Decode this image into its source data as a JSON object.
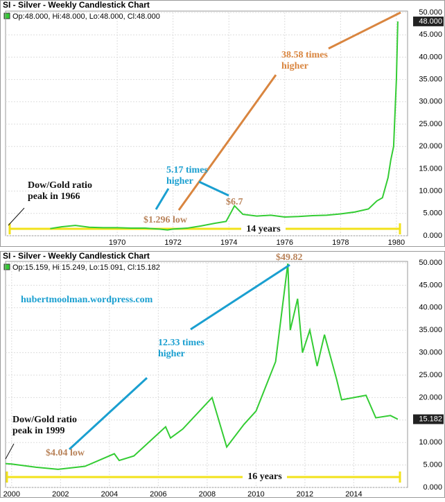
{
  "chart_data": [
    {
      "type": "line",
      "title": "SI - Silver - Weekly Candlestick Chart",
      "ohlc_label": "Op:48.000, Hi:48.000, Lo:48.000, Cl:48.000",
      "x": [
        1967.6,
        1968.0,
        1968.5,
        1969.0,
        1969.5,
        1970.0,
        1970.5,
        1971.0,
        1971.5,
        1971.8,
        1972.0,
        1972.5,
        1973.0,
        1973.5,
        1973.9,
        1974.1,
        1974.2,
        1974.5,
        1975.0,
        1975.5,
        1976.0,
        1976.5,
        1977.0,
        1977.5,
        1978.0,
        1978.5,
        1979.0,
        1979.3,
        1979.5,
        1979.7,
        1979.8,
        1979.9,
        1980.0,
        1980.05
      ],
      "values": [
        1.6,
        2.0,
        2.3,
        1.9,
        1.8,
        1.8,
        1.7,
        1.7,
        1.5,
        1.296,
        1.5,
        1.7,
        2.2,
        2.8,
        3.2,
        5.5,
        6.7,
        4.8,
        4.4,
        4.6,
        4.2,
        4.3,
        4.5,
        4.6,
        4.9,
        5.3,
        6.0,
        7.8,
        8.5,
        13,
        17,
        20,
        35,
        48
      ],
      "color": "#33cc33",
      "xlim": [
        1966,
        1980.4
      ],
      "xticks": [
        1970,
        1972,
        1974,
        1976,
        1978,
        1980
      ],
      "ylim": [
        0,
        50
      ],
      "yticks": [
        {
          "value": 0,
          "label": "0.000"
        },
        {
          "value": 5,
          "label": "5.000"
        },
        {
          "value": 10,
          "label": "10.000"
        },
        {
          "value": 15,
          "label": "15.000"
        },
        {
          "value": 20,
          "label": "20.000"
        },
        {
          "value": 25,
          "label": "25.000"
        },
        {
          "value": 30,
          "label": "30.000"
        },
        {
          "value": 35,
          "label": "35.000"
        },
        {
          "value": 40,
          "label": "40.000"
        },
        {
          "value": 45,
          "label": "45.000"
        },
        {
          "value": 50,
          "label": "50.000"
        }
      ],
      "last_value": {
        "value": 48,
        "label": "48.000"
      },
      "grid": true,
      "annotations": [
        {
          "text": [
            "Dow/Gold ratio",
            "peak in 1966"
          ],
          "color": "#111111"
        },
        {
          "text": [
            "$1.296 low"
          ],
          "color": "#b9835a"
        },
        {
          "text": [
            "5.17 times",
            "higher"
          ],
          "color": "#1a9fd0"
        },
        {
          "text": [
            "$6.7"
          ],
          "color": "#b9835a"
        },
        {
          "text": [
            "38.58 times",
            "higher"
          ],
          "color": "#d9853f"
        },
        {
          "text": [
            "14 years"
          ],
          "color": "#111111"
        }
      ]
    },
    {
      "type": "line",
      "title": "SI - Silver - Weekly Candlestick Chart",
      "ohlc_label": "Op:15.159, Hi:15.249, Lo:15.091, Cl:15.182",
      "x": [
        1999.75,
        2000.0,
        2001.0,
        2001.9,
        2003.0,
        2004.2,
        2004.4,
        2005.0,
        2006.3,
        2006.5,
        2007.0,
        2008.2,
        2008.8,
        2009.5,
        2010.0,
        2010.8,
        2011.3,
        2011.4,
        2011.7,
        2011.9,
        2012.2,
        2012.5,
        2012.8,
        2013.3,
        2013.5,
        2014.0,
        2014.5,
        2014.9,
        2015.5,
        2015.8
      ],
      "values": [
        5.3,
        5.2,
        4.5,
        4.04,
        4.7,
        7.5,
        6,
        7,
        13.5,
        11,
        13,
        20,
        9,
        14,
        17,
        28,
        49.82,
        35,
        42,
        30,
        35,
        27,
        34,
        24,
        19.5,
        20,
        20.5,
        15.5,
        16,
        15.182
      ],
      "color": "#33cc33",
      "xlim": [
        1999.75,
        2016.2
      ],
      "xticks": [
        2000,
        2002,
        2004,
        2006,
        2008,
        2010,
        2012,
        2014
      ],
      "ylim": [
        0,
        50
      ],
      "yticks": [
        {
          "value": 0,
          "label": "0.000"
        },
        {
          "value": 5,
          "label": "5.000"
        },
        {
          "value": 10,
          "label": "10.000"
        },
        {
          "value": 15,
          "label": "15.000"
        },
        {
          "value": 20,
          "label": "20.000"
        },
        {
          "value": 25,
          "label": "25.000"
        },
        {
          "value": 30,
          "label": "30.000"
        },
        {
          "value": 35,
          "label": "35.000"
        },
        {
          "value": 40,
          "label": "40.000"
        },
        {
          "value": 45,
          "label": "45.000"
        },
        {
          "value": 50,
          "label": "50.000"
        }
      ],
      "last_value": {
        "value": 15.182,
        "label": "15.182"
      },
      "grid": true,
      "annotations": [
        {
          "text": [
            "hubertmoolman.wordpress.com"
          ],
          "color": "#1a9fd0"
        },
        {
          "text": [
            "12.33 times",
            "higher"
          ],
          "color": "#1a9fd0"
        },
        {
          "text": [
            "$49.82"
          ],
          "color": "#b9835a"
        },
        {
          "text": [
            "Dow/Gold ratio",
            "peak in 1999"
          ],
          "color": "#111111"
        },
        {
          "text": [
            "$4.04 low"
          ],
          "color": "#b9835a"
        },
        {
          "text": [
            "16 years"
          ],
          "color": "#111111"
        }
      ]
    }
  ]
}
